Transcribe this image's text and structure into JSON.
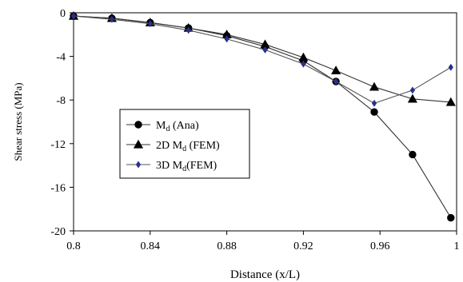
{
  "chart_data": {
    "type": "line",
    "xlabel": "Distance (x/L)",
    "ylabel": "Shear stress (MPa)",
    "xlim": [
      0.8,
      1.0
    ],
    "ylim": [
      -20,
      0
    ],
    "xticks": [
      0.8,
      0.84,
      0.88,
      0.92,
      0.96,
      1.0
    ],
    "xtick_labels": [
      "0.8",
      "0.84",
      "0.88",
      "0.92",
      "0.96",
      "1"
    ],
    "yticks": [
      0,
      -4,
      -8,
      -12,
      -16,
      -20
    ],
    "ytick_labels": [
      "0",
      "-4",
      "-8",
      "-12",
      "-16",
      "-20"
    ],
    "grid": false,
    "legend_position": "center-left",
    "series": [
      {
        "name_main": "M",
        "name_sub": "d",
        "name_rest": " (Ana)",
        "name_prefix": "",
        "marker": "circle",
        "color": "#000000",
        "x": [
          0.8,
          0.82,
          0.84,
          0.86,
          0.88,
          0.9,
          0.92,
          0.937,
          0.957,
          0.977,
          0.997
        ],
        "y": [
          -0.3,
          -0.5,
          -0.9,
          -1.4,
          -2.1,
          -3.1,
          -4.4,
          -6.3,
          -9.1,
          -13.0,
          -18.8
        ]
      },
      {
        "name_main": "M",
        "name_sub": "d",
        "name_rest": " (FEM)",
        "name_prefix": "2D ",
        "marker": "triangle",
        "color": "#000000",
        "x": [
          0.8,
          0.82,
          0.84,
          0.86,
          0.88,
          0.9,
          0.92,
          0.937,
          0.957,
          0.977,
          0.997
        ],
        "y": [
          -0.3,
          -0.5,
          -0.9,
          -1.4,
          -2.0,
          -2.9,
          -4.1,
          -5.3,
          -6.8,
          -7.9,
          -8.2
        ]
      },
      {
        "name_main": "M",
        "name_sub": "d",
        "name_rest": "(FEM)",
        "name_prefix": "3D ",
        "marker": "diamond",
        "color": "#2b2f8f",
        "x": [
          0.8,
          0.82,
          0.84,
          0.86,
          0.88,
          0.9,
          0.92,
          0.937,
          0.957,
          0.977,
          0.997
        ],
        "y": [
          -0.3,
          -0.6,
          -1.0,
          -1.6,
          -2.4,
          -3.4,
          -4.7,
          -6.3,
          -8.3,
          -7.1,
          -5.0
        ]
      }
    ]
  }
}
